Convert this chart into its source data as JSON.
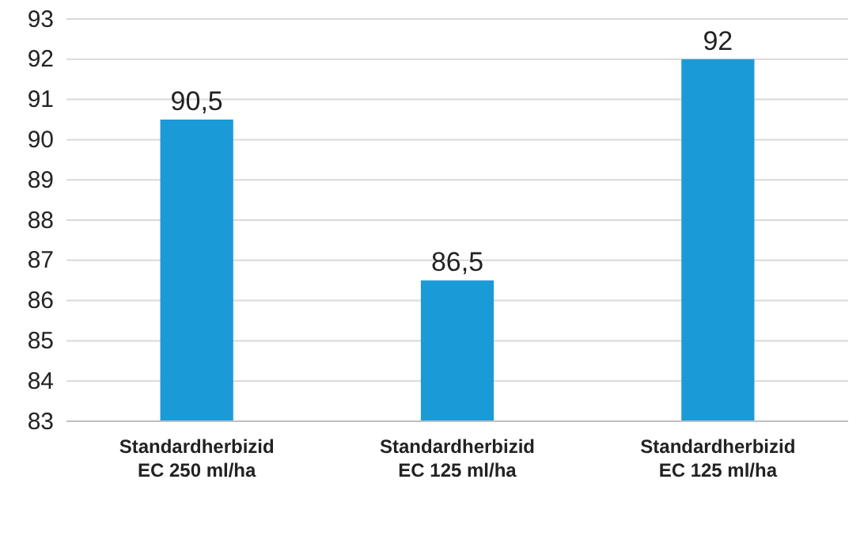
{
  "chart_data": {
    "type": "bar",
    "categories": [
      "Standardherbizid EC 250 ml/ha",
      "Standardherbizid EC 125 ml/ha",
      "Standardherbizid EC 125 ml/ha"
    ],
    "values": [
      90.5,
      86.5,
      92
    ],
    "value_labels": [
      "90,5",
      "86,5",
      "92"
    ],
    "color": "#1b9ad8",
    "ylim": [
      83,
      93
    ],
    "yticks": [
      83,
      84,
      85,
      86,
      87,
      88,
      89,
      90,
      91,
      92,
      93
    ],
    "grid": "y"
  }
}
